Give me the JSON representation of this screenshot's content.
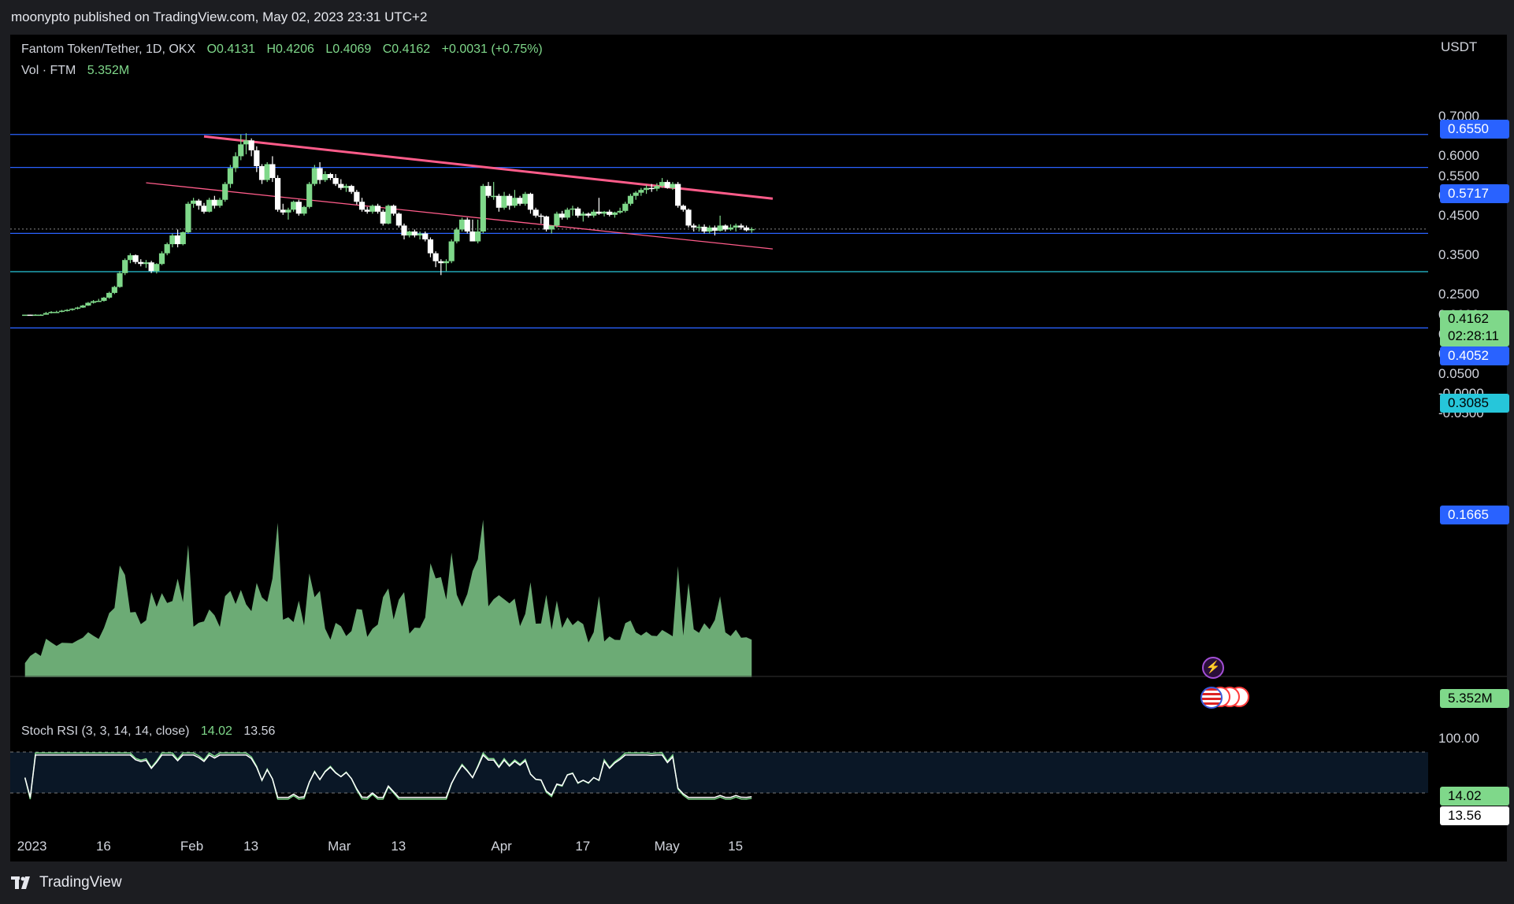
{
  "header": {
    "published_by": "moonypto published on TradingView.com, May 02, 2023 23:31 UTC+2"
  },
  "legend": {
    "symbol": "Fantom Token/Tether, 1D, OKX",
    "open": "O0.4131",
    "high": "H0.4206",
    "low": "L0.4069",
    "close": "C0.4162",
    "change": "+0.0031 (+0.75%)",
    "vol_label": "Vol · FTM",
    "vol_value": "5.352M",
    "stoch_label": "Stoch RSI (3, 3, 14, 14, close)",
    "stoch_k": "14.02",
    "stoch_d": "13.56"
  },
  "axis": {
    "currency": "USDT",
    "price_ticks": [
      "0.7000",
      "0.6000",
      "0.5500",
      "0.5000",
      "0.4500",
      "0.3500",
      "0.2500",
      "0.2000",
      "0.1500",
      "0.1000",
      "0.0500",
      "-0.0000",
      "-0.0500"
    ],
    "stoch_ticks": [
      "100.00"
    ],
    "time_labels": [
      "2023",
      "16",
      "Feb",
      "13",
      "Mar",
      "13",
      "Apr",
      "17",
      "May",
      "15"
    ]
  },
  "tags": {
    "level_1": "0.6550",
    "level_2": "0.5717",
    "level_3": "0.4052",
    "level_4": "0.3085",
    "level_5": "0.1665",
    "last_price": "0.4162",
    "countdown": "02:28:11",
    "volume": "5.352M",
    "stoch_k": "14.02",
    "stoch_d": "13.56"
  },
  "footer": {
    "brand": "TradingView"
  },
  "colors": {
    "up": "#7fd88a",
    "down": "#ffffff",
    "hline": "#2962ff",
    "support": "#26c6da",
    "trend": "#ff5c8a",
    "vol_up": "#7fc98a",
    "vol_down": "#5a8f62"
  },
  "chart_data": {
    "type": "candlestick",
    "title": "Fantom Token/Tether, 1D, OKX",
    "y_unit": "USDT",
    "ylim": [
      -0.05,
      0.72
    ],
    "horizontal_levels": [
      0.655,
      0.5717,
      0.4052,
      0.3085,
      0.1665
    ],
    "trendlines": [
      {
        "from": [
          "2023-02-04",
          0.65
        ],
        "to": [
          "2023-05-23",
          0.493
        ]
      },
      {
        "from": [
          "2023-01-24",
          0.533
        ],
        "to": [
          "2023-05-23",
          0.366
        ]
      }
    ],
    "ohlc_daily_from_2023-01-01": [
      [
        0.2,
        0.2,
        0.2,
        0.2
      ],
      [
        0.2,
        0.2,
        0.198,
        0.199
      ],
      [
        0.199,
        0.201,
        0.198,
        0.2
      ],
      [
        0.2,
        0.201,
        0.199,
        0.2
      ],
      [
        0.2,
        0.207,
        0.2,
        0.204
      ],
      [
        0.204,
        0.209,
        0.203,
        0.207
      ],
      [
        0.207,
        0.21,
        0.205,
        0.207
      ],
      [
        0.207,
        0.212,
        0.206,
        0.21
      ],
      [
        0.21,
        0.214,
        0.208,
        0.212
      ],
      [
        0.212,
        0.216,
        0.21,
        0.215
      ],
      [
        0.215,
        0.22,
        0.213,
        0.218
      ],
      [
        0.218,
        0.225,
        0.217,
        0.223
      ],
      [
        0.223,
        0.232,
        0.222,
        0.23
      ],
      [
        0.23,
        0.237,
        0.228,
        0.234
      ],
      [
        0.234,
        0.24,
        0.232,
        0.235
      ],
      [
        0.235,
        0.245,
        0.233,
        0.243
      ],
      [
        0.243,
        0.258,
        0.24,
        0.255
      ],
      [
        0.255,
        0.273,
        0.252,
        0.27
      ],
      [
        0.27,
        0.31,
        0.268,
        0.305
      ],
      [
        0.305,
        0.342,
        0.3,
        0.338
      ],
      [
        0.338,
        0.355,
        0.33,
        0.35
      ],
      [
        0.35,
        0.352,
        0.328,
        0.333
      ],
      [
        0.333,
        0.34,
        0.322,
        0.328
      ],
      [
        0.328,
        0.338,
        0.318,
        0.332
      ],
      [
        0.332,
        0.336,
        0.305,
        0.31
      ],
      [
        0.31,
        0.33,
        0.304,
        0.328
      ],
      [
        0.328,
        0.36,
        0.325,
        0.355
      ],
      [
        0.355,
        0.382,
        0.35,
        0.378
      ],
      [
        0.378,
        0.405,
        0.37,
        0.4
      ],
      [
        0.4,
        0.415,
        0.37,
        0.378
      ],
      [
        0.378,
        0.41,
        0.375,
        0.408
      ],
      [
        0.408,
        0.485,
        0.405,
        0.48
      ],
      [
        0.48,
        0.495,
        0.47,
        0.488
      ],
      [
        0.488,
        0.492,
        0.465,
        0.475
      ],
      [
        0.475,
        0.482,
        0.455,
        0.46
      ],
      [
        0.46,
        0.495,
        0.458,
        0.49
      ],
      [
        0.49,
        0.5,
        0.468,
        0.475
      ],
      [
        0.475,
        0.495,
        0.47,
        0.49
      ],
      [
        0.49,
        0.535,
        0.485,
        0.53
      ],
      [
        0.53,
        0.578,
        0.52,
        0.57
      ],
      [
        0.57,
        0.61,
        0.56,
        0.6
      ],
      [
        0.6,
        0.655,
        0.59,
        0.63
      ],
      [
        0.63,
        0.658,
        0.605,
        0.64
      ],
      [
        0.64,
        0.645,
        0.6,
        0.615
      ],
      [
        0.615,
        0.625,
        0.56,
        0.575
      ],
      [
        0.575,
        0.58,
        0.53,
        0.54
      ],
      [
        0.54,
        0.585,
        0.535,
        0.58
      ],
      [
        0.58,
        0.6,
        0.535,
        0.545
      ],
      [
        0.545,
        0.552,
        0.46,
        0.465
      ],
      [
        0.465,
        0.48,
        0.452,
        0.458
      ],
      [
        0.458,
        0.47,
        0.44,
        0.465
      ],
      [
        0.465,
        0.488,
        0.46,
        0.485
      ],
      [
        0.485,
        0.49,
        0.45,
        0.455
      ],
      [
        0.455,
        0.475,
        0.45,
        0.472
      ],
      [
        0.472,
        0.535,
        0.468,
        0.53
      ],
      [
        0.53,
        0.578,
        0.525,
        0.57
      ],
      [
        0.57,
        0.585,
        0.53,
        0.54
      ],
      [
        0.54,
        0.562,
        0.535,
        0.555
      ],
      [
        0.555,
        0.558,
        0.54,
        0.545
      ],
      [
        0.545,
        0.555,
        0.525,
        0.53
      ],
      [
        0.53,
        0.542,
        0.515,
        0.52
      ],
      [
        0.52,
        0.53,
        0.51,
        0.525
      ],
      [
        0.525,
        0.528,
        0.505,
        0.51
      ],
      [
        0.51,
        0.515,
        0.478,
        0.485
      ],
      [
        0.485,
        0.495,
        0.46,
        0.465
      ],
      [
        0.465,
        0.472,
        0.455,
        0.46
      ],
      [
        0.46,
        0.478,
        0.455,
        0.475
      ],
      [
        0.475,
        0.48,
        0.455,
        0.46
      ],
      [
        0.46,
        0.465,
        0.425,
        0.43
      ],
      [
        0.43,
        0.478,
        0.428,
        0.475
      ],
      [
        0.475,
        0.478,
        0.45,
        0.455
      ],
      [
        0.455,
        0.458,
        0.42,
        0.425
      ],
      [
        0.425,
        0.43,
        0.39,
        0.4
      ],
      [
        0.4,
        0.412,
        0.395,
        0.41
      ],
      [
        0.41,
        0.415,
        0.395,
        0.4
      ],
      [
        0.4,
        0.41,
        0.39,
        0.405
      ],
      [
        0.405,
        0.41,
        0.385,
        0.39
      ],
      [
        0.39,
        0.395,
        0.345,
        0.355
      ],
      [
        0.355,
        0.36,
        0.32,
        0.335
      ],
      [
        0.335,
        0.34,
        0.3,
        0.33
      ],
      [
        0.33,
        0.34,
        0.31,
        0.335
      ],
      [
        0.335,
        0.39,
        0.33,
        0.385
      ],
      [
        0.385,
        0.42,
        0.38,
        0.415
      ],
      [
        0.415,
        0.445,
        0.41,
        0.44
      ],
      [
        0.44,
        0.445,
        0.405,
        0.41
      ],
      [
        0.41,
        0.44,
        0.39,
        0.385
      ],
      [
        0.385,
        0.44,
        0.38,
        0.41
      ],
      [
        0.41,
        0.53,
        0.405,
        0.525
      ],
      [
        0.525,
        0.535,
        0.495,
        0.5
      ],
      [
        0.5,
        0.535,
        0.49,
        0.5
      ],
      [
        0.5,
        0.505,
        0.46,
        0.47
      ],
      [
        0.47,
        0.51,
        0.465,
        0.5
      ],
      [
        0.5,
        0.505,
        0.465,
        0.475
      ],
      [
        0.475,
        0.515,
        0.47,
        0.495
      ],
      [
        0.495,
        0.5,
        0.475,
        0.48
      ],
      [
        0.48,
        0.51,
        0.475,
        0.505
      ],
      [
        0.505,
        0.508,
        0.455,
        0.465
      ],
      [
        0.465,
        0.47,
        0.445,
        0.45
      ],
      [
        0.45,
        0.455,
        0.43,
        0.448
      ],
      [
        0.448,
        0.45,
        0.41,
        0.415
      ],
      [
        0.415,
        0.425,
        0.405,
        0.425
      ],
      [
        0.425,
        0.46,
        0.42,
        0.455
      ],
      [
        0.455,
        0.462,
        0.44,
        0.445
      ],
      [
        0.445,
        0.47,
        0.44,
        0.465
      ],
      [
        0.465,
        0.475,
        0.45,
        0.468
      ],
      [
        0.468,
        0.472,
        0.445,
        0.45
      ],
      [
        0.45,
        0.46,
        0.435,
        0.455
      ],
      [
        0.455,
        0.458,
        0.445,
        0.45
      ],
      [
        0.45,
        0.465,
        0.445,
        0.46
      ],
      [
        0.46,
        0.495,
        0.452,
        0.455
      ],
      [
        0.455,
        0.462,
        0.448,
        0.46
      ],
      [
        0.46,
        0.465,
        0.448,
        0.452
      ],
      [
        0.452,
        0.46,
        0.445,
        0.458
      ],
      [
        0.458,
        0.47,
        0.455,
        0.462
      ],
      [
        0.462,
        0.485,
        0.458,
        0.48
      ],
      [
        0.48,
        0.505,
        0.475,
        0.5
      ],
      [
        0.5,
        0.512,
        0.49,
        0.508
      ],
      [
        0.508,
        0.52,
        0.5,
        0.515
      ],
      [
        0.515,
        0.528,
        0.505,
        0.52
      ],
      [
        0.52,
        0.53,
        0.51,
        0.518
      ],
      [
        0.518,
        0.532,
        0.512,
        0.525
      ],
      [
        0.525,
        0.545,
        0.52,
        0.535
      ],
      [
        0.535,
        0.54,
        0.518,
        0.52
      ],
      [
        0.52,
        0.535,
        0.515,
        0.53
      ],
      [
        0.53,
        0.535,
        0.47,
        0.475
      ],
      [
        0.475,
        0.478,
        0.46,
        0.465
      ],
      [
        0.465,
        0.468,
        0.42,
        0.425
      ],
      [
        0.425,
        0.43,
        0.41,
        0.42
      ],
      [
        0.42,
        0.428,
        0.41,
        0.422
      ],
      [
        0.422,
        0.428,
        0.405,
        0.41
      ],
      [
        0.41,
        0.425,
        0.405,
        0.42
      ],
      [
        0.42,
        0.425,
        0.4,
        0.412
      ],
      [
        0.412,
        0.45,
        0.41,
        0.425
      ],
      [
        0.425,
        0.428,
        0.41,
        0.415
      ],
      [
        0.415,
        0.428,
        0.412,
        0.42
      ],
      [
        0.42,
        0.43,
        0.41,
        0.425
      ],
      [
        0.425,
        0.43,
        0.415,
        0.42
      ],
      [
        0.42,
        0.425,
        0.41,
        0.413
      ],
      [
        0.4131,
        0.4206,
        0.4069,
        0.4162
      ]
    ],
    "volume_millions": {
      "note": "volume series rendered as area histogram",
      "last": 5.352
    },
    "stoch_rsi": {
      "k_last": 14.02,
      "d_last": 13.56,
      "levels": [
        80,
        20
      ]
    }
  }
}
